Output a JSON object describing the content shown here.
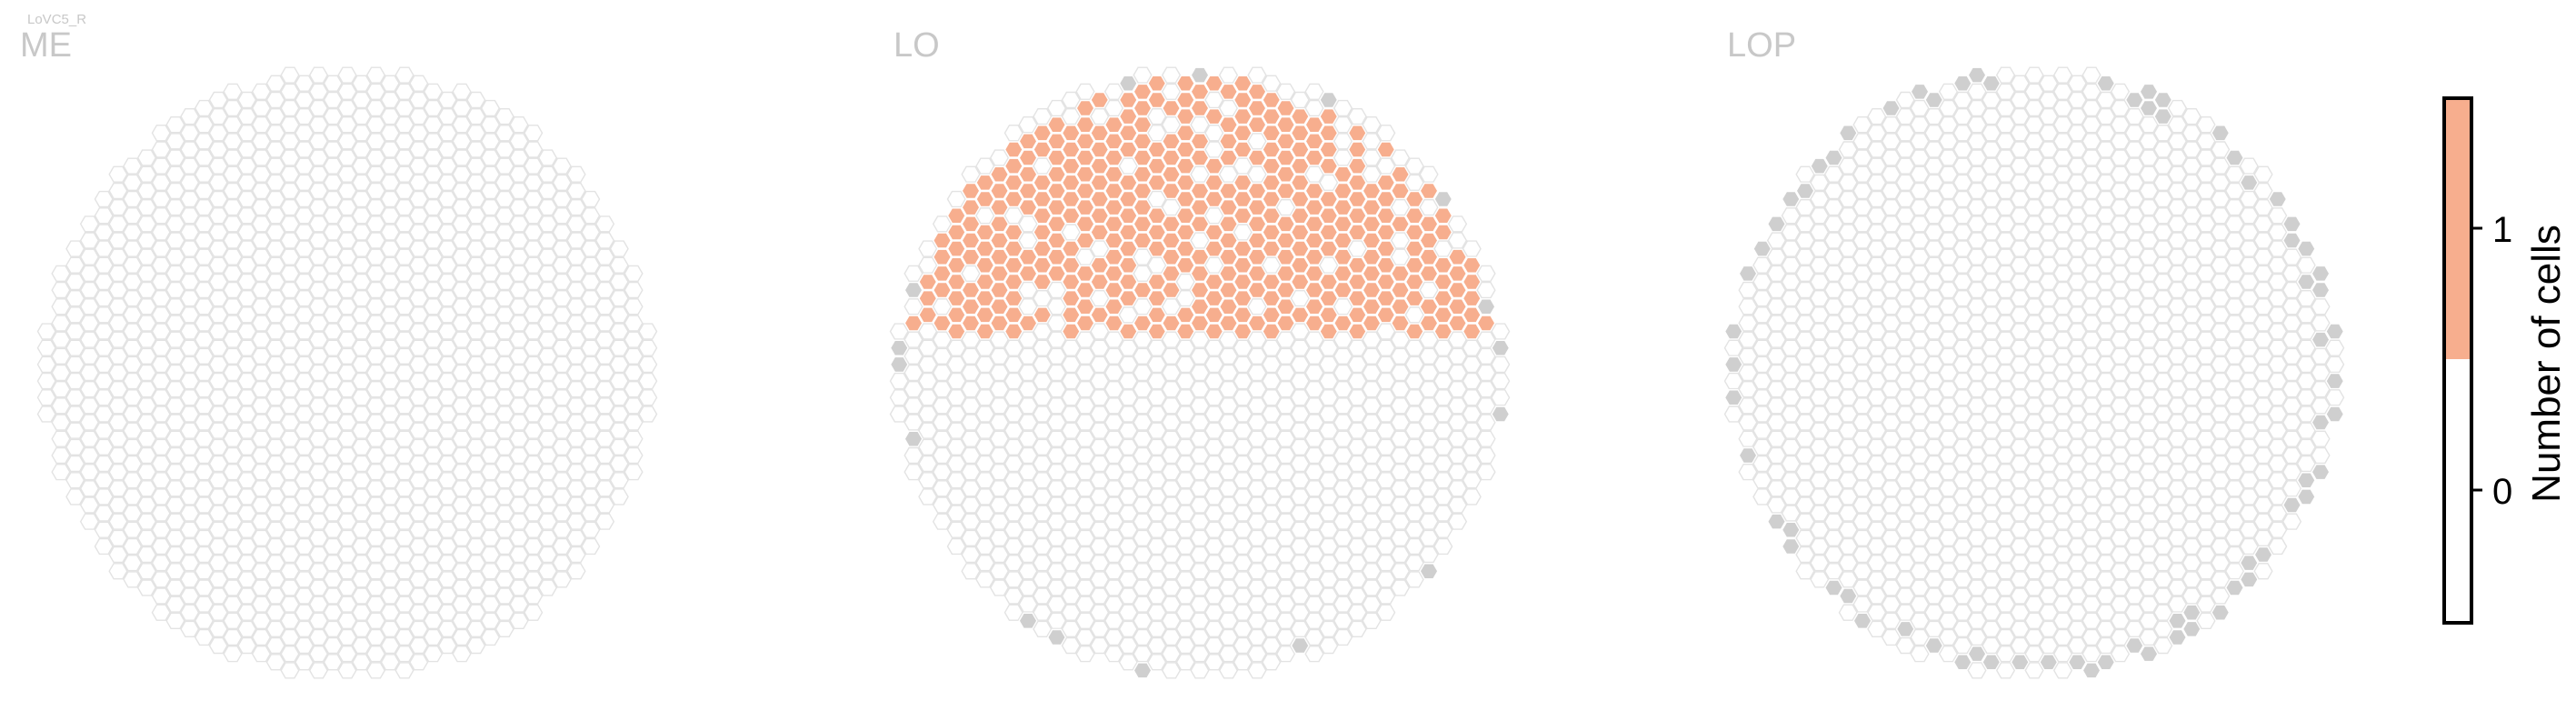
{
  "figure": {
    "cell_type_label": "LoVC5_R",
    "panels": [
      {
        "id": "me",
        "title": "ME"
      },
      {
        "id": "lo",
        "title": "LO"
      },
      {
        "id": "lop",
        "title": "LOP"
      }
    ]
  },
  "colorbar": {
    "label": "Number of cells",
    "ticks": [
      "0",
      "1"
    ],
    "colors": {
      "zero": "#ffffff",
      "one": "#f7ae8e"
    }
  },
  "colors": {
    "empty_hex_stroke": "#e3e3e3",
    "empty_hex_fill": "#ffffff",
    "gray_hex": "#cfcfcf",
    "filled_hex": "#f7ae8e",
    "filled_hex_stroke": "#ffffff"
  }
}
